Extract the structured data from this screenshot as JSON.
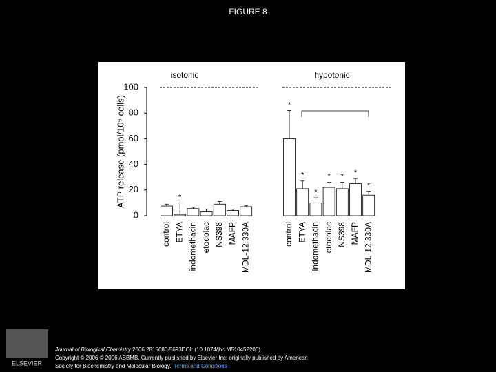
{
  "title": "FIGURE 8",
  "chart_data": {
    "type": "bar",
    "y_label": "ATP release (pmol/10⁵ cells)",
    "ylim": [
      0,
      100
    ],
    "yticks": [
      0,
      20,
      40,
      60,
      80,
      100
    ],
    "color": "#ffffff",
    "groups": [
      {
        "name": "isotonic",
        "categories": [
          "control",
          "ETYA",
          "indomethacin",
          "etodolac",
          "NS398",
          "MAFP",
          "MDL-12,330A"
        ],
        "values": [
          7.5,
          1,
          5.5,
          3,
          9,
          4,
          7
        ],
        "errors": [
          1.5,
          9,
          1,
          2,
          2,
          1,
          1
        ],
        "marks": [
          null,
          "*",
          null,
          null,
          null,
          null,
          null
        ]
      },
      {
        "name": "hypotonic",
        "categories": [
          "control",
          "ETYA",
          "indomethacin",
          "etodolac",
          "NS398",
          "MAFP",
          "MDL-12,330A"
        ],
        "values": [
          60,
          21,
          10,
          22,
          21,
          25,
          16
        ],
        "errors": [
          22,
          6,
          4,
          4,
          5,
          4,
          3
        ],
        "marks": [
          "*",
          "*",
          "*",
          "*",
          "*",
          "*",
          "*"
        ]
      }
    ]
  },
  "footer": {
    "journal": "Journal of Biological Chemistry",
    "citation": " 2006 2815686-5693DOI: (10.1074/jbc.M510452200)",
    "line2": "Copyright © 2006 © 2006 ASBMB. Currently published by Elsevier Inc; originally published by American",
    "line3": "Society for Biochemistry and Molecular Biology.",
    "link": "Terms and Conditions",
    "logo": "ELSEVIER"
  }
}
